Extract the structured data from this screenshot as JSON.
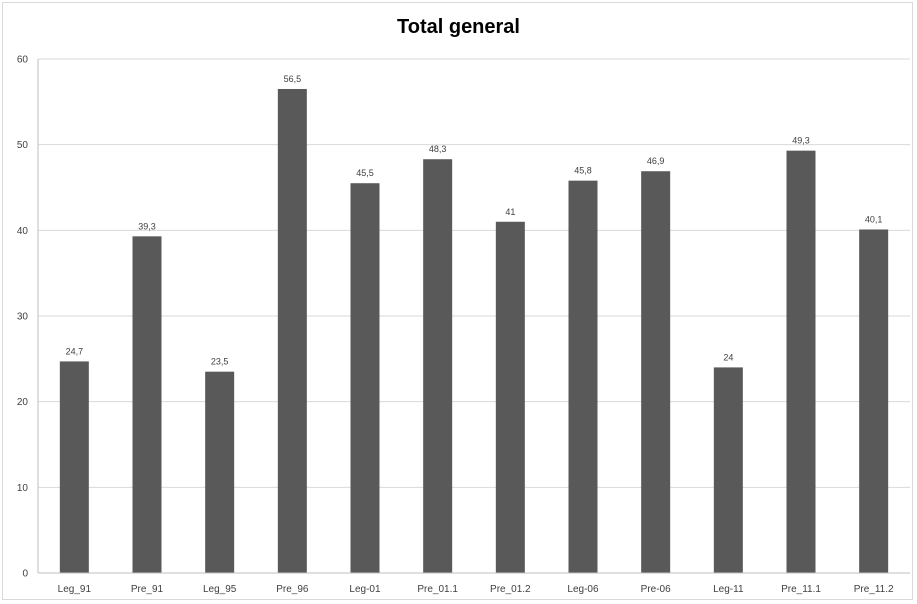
{
  "chart_data": {
    "type": "bar",
    "title": "Total general",
    "xlabel": "",
    "ylabel": "",
    "categories": [
      "Leg_91",
      "Pre_91",
      "Leg_95",
      "Pre_96",
      "Leg-01",
      "Pre_01.1",
      "Pre_01.2",
      "Leg-06",
      "Pre-06",
      "Leg-11",
      "Pre_11.1",
      "Pre_11.2"
    ],
    "values": [
      24.7,
      39.3,
      23.5,
      56.5,
      45.5,
      48.3,
      41,
      45.8,
      46.9,
      24,
      49.3,
      40.1
    ],
    "value_labels": [
      "24,7",
      "39,3",
      "23,5",
      "56,5",
      "45,5",
      "48,3",
      "41",
      "45,8",
      "46,9",
      "24",
      "49,3",
      "40,1"
    ],
    "ylim": [
      0,
      60
    ],
    "yticks": [
      0,
      10,
      20,
      30,
      40,
      50,
      60
    ],
    "grid": true,
    "legend": "none",
    "bar_color": "#595959",
    "grid_color": "#d9d9d9"
  }
}
